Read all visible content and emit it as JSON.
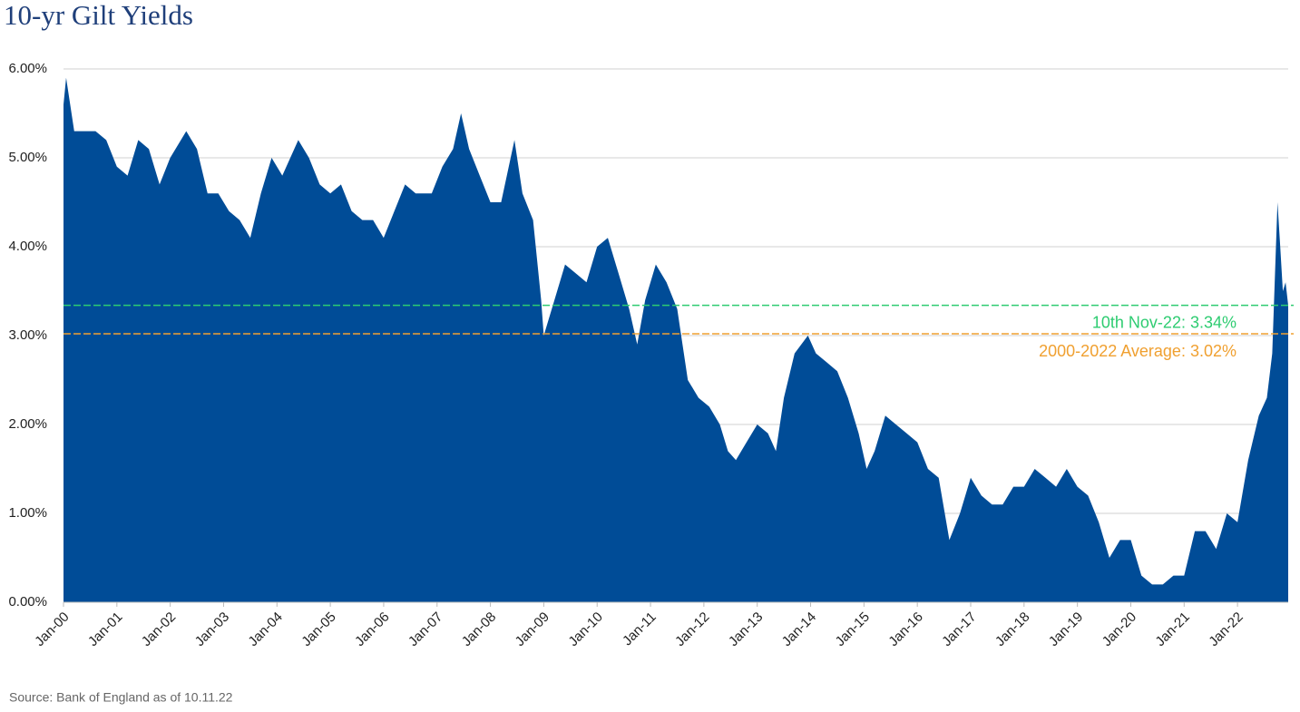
{
  "chart_data": {
    "type": "area",
    "title": "10-yr Gilt Yields",
    "source": "Source: Bank of England as of 10.11.22",
    "color": "#004c97",
    "grid": true,
    "x": [
      2000.0,
      2000.05,
      2000.2,
      2000.4,
      2000.6,
      2000.8,
      2001.0,
      2001.2,
      2001.4,
      2001.6,
      2001.8,
      2002.0,
      2002.3,
      2002.5,
      2002.7,
      2002.9,
      2003.1,
      2003.3,
      2003.5,
      2003.7,
      2003.9,
      2004.1,
      2004.4,
      2004.6,
      2004.8,
      2005.0,
      2005.2,
      2005.4,
      2005.6,
      2005.8,
      2006.0,
      2006.2,
      2006.4,
      2006.6,
      2006.9,
      2007.1,
      2007.3,
      2007.45,
      2007.6,
      2007.8,
      2008.0,
      2008.2,
      2008.45,
      2008.6,
      2008.8,
      2008.95,
      2009.0,
      2009.2,
      2009.4,
      2009.6,
      2009.8,
      2010.0,
      2010.2,
      2010.4,
      2010.6,
      2010.75,
      2010.9,
      2011.1,
      2011.3,
      2011.5,
      2011.7,
      2011.9,
      2012.1,
      2012.3,
      2012.45,
      2012.6,
      2012.8,
      2013.0,
      2013.2,
      2013.35,
      2013.5,
      2013.7,
      2013.95,
      2014.1,
      2014.3,
      2014.5,
      2014.7,
      2014.9,
      2015.05,
      2015.2,
      2015.4,
      2015.6,
      2015.8,
      2016.0,
      2016.2,
      2016.4,
      2016.6,
      2016.8,
      2017.0,
      2017.2,
      2017.4,
      2017.6,
      2017.8,
      2018.0,
      2018.2,
      2018.4,
      2018.6,
      2018.8,
      2019.0,
      2019.2,
      2019.4,
      2019.6,
      2019.8,
      2020.0,
      2020.2,
      2020.4,
      2020.6,
      2020.8,
      2021.0,
      2021.2,
      2021.4,
      2021.6,
      2021.8,
      2022.0,
      2022.2,
      2022.4,
      2022.55,
      2022.65,
      2022.75,
      2022.8,
      2022.85,
      2022.9,
      2022.95
    ],
    "values": [
      5.6,
      5.9,
      5.3,
      5.3,
      5.3,
      5.2,
      4.9,
      4.8,
      5.2,
      5.1,
      4.7,
      5.0,
      5.3,
      5.1,
      4.6,
      4.6,
      4.4,
      4.3,
      4.1,
      4.6,
      5.0,
      4.8,
      5.2,
      5.0,
      4.7,
      4.6,
      4.7,
      4.4,
      4.3,
      4.3,
      4.1,
      4.4,
      4.7,
      4.6,
      4.6,
      4.9,
      5.1,
      5.5,
      5.1,
      4.8,
      4.5,
      4.5,
      5.2,
      4.6,
      4.3,
      3.4,
      3.0,
      3.4,
      3.8,
      3.7,
      3.6,
      4.0,
      4.1,
      3.7,
      3.3,
      2.9,
      3.4,
      3.8,
      3.6,
      3.3,
      2.5,
      2.3,
      2.2,
      2.0,
      1.7,
      1.6,
      1.8,
      2.0,
      1.9,
      1.7,
      2.3,
      2.8,
      3.0,
      2.8,
      2.7,
      2.6,
      2.3,
      1.9,
      1.5,
      1.7,
      2.1,
      2.0,
      1.9,
      1.8,
      1.5,
      1.4,
      0.7,
      1.0,
      1.4,
      1.2,
      1.1,
      1.1,
      1.3,
      1.3,
      1.5,
      1.4,
      1.3,
      1.5,
      1.3,
      1.2,
      0.9,
      0.5,
      0.7,
      0.7,
      0.3,
      0.2,
      0.2,
      0.3,
      0.3,
      0.8,
      0.8,
      0.6,
      1.0,
      0.9,
      1.6,
      2.1,
      2.3,
      2.8,
      4.5,
      4.0,
      3.5,
      3.6,
      3.34
    ],
    "xlim": [
      2000,
      2022.95
    ],
    "xticks": [
      {
        "value": 2000,
        "label": "Jan-00"
      },
      {
        "value": 2001,
        "label": "Jan-01"
      },
      {
        "value": 2002,
        "label": "Jan-02"
      },
      {
        "value": 2003,
        "label": "Jan-03"
      },
      {
        "value": 2004,
        "label": "Jan-04"
      },
      {
        "value": 2005,
        "label": "Jan-05"
      },
      {
        "value": 2006,
        "label": "Jan-06"
      },
      {
        "value": 2007,
        "label": "Jan-07"
      },
      {
        "value": 2008,
        "label": "Jan-08"
      },
      {
        "value": 2009,
        "label": "Jan-09"
      },
      {
        "value": 2010,
        "label": "Jan-10"
      },
      {
        "value": 2011,
        "label": "Jan-11"
      },
      {
        "value": 2012,
        "label": "Jan-12"
      },
      {
        "value": 2013,
        "label": "Jan-13"
      },
      {
        "value": 2014,
        "label": "Jan-14"
      },
      {
        "value": 2015,
        "label": "Jan-15"
      },
      {
        "value": 2016,
        "label": "Jan-16"
      },
      {
        "value": 2017,
        "label": "Jan-17"
      },
      {
        "value": 2018,
        "label": "Jan-18"
      },
      {
        "value": 2019,
        "label": "Jan-19"
      },
      {
        "value": 2020,
        "label": "Jan-20"
      },
      {
        "value": 2021,
        "label": "Jan-21"
      },
      {
        "value": 2022,
        "label": "Jan-22"
      }
    ],
    "ylim": [
      0,
      6
    ],
    "yticks": [
      {
        "value": 0,
        "label": "0.00%"
      },
      {
        "value": 1,
        "label": "1.00%"
      },
      {
        "value": 2,
        "label": "2.00%"
      },
      {
        "value": 3,
        "label": "3.00%"
      },
      {
        "value": 4,
        "label": "4.00%"
      },
      {
        "value": 5,
        "label": "5.00%"
      },
      {
        "value": 6,
        "label": "6.00%"
      }
    ],
    "reference_lines": [
      {
        "value": 3.34,
        "label": "10th Nov-22: 3.34%",
        "color": "#2ecc71"
      },
      {
        "value": 3.02,
        "label": "2000-2022 Average: 3.02%",
        "color": "#f0a030"
      }
    ]
  }
}
